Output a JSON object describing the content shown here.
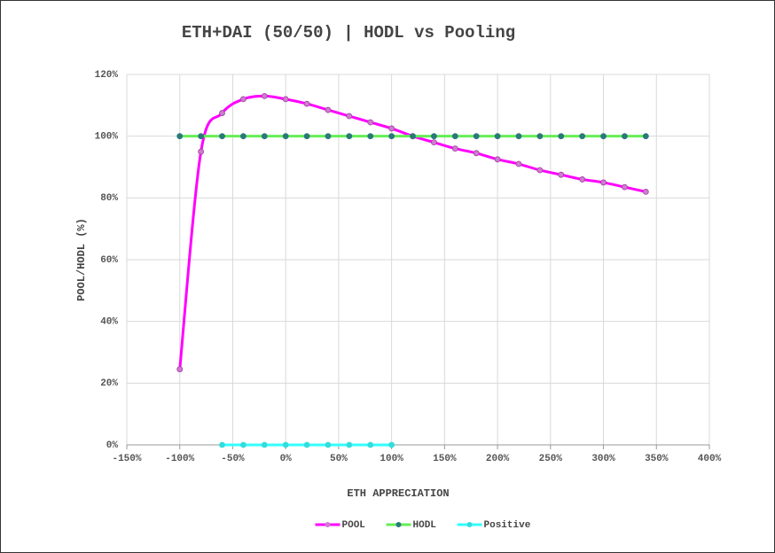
{
  "chart_data": {
    "type": "line",
    "title": "ETH+DAI (50/50) | HODL vs Pooling",
    "x_label": "ETH APPRECIATION",
    "y_label": "POOL/HODL (%)",
    "xlim": [
      -150,
      400
    ],
    "ylim": [
      0,
      120
    ],
    "xticks": [
      {
        "value": -150,
        "label": "-150%"
      },
      {
        "value": -100,
        "label": "-100%"
      },
      {
        "value": -50,
        "label": "-50%"
      },
      {
        "value": 0,
        "label": "0%"
      },
      {
        "value": 50,
        "label": "50%"
      },
      {
        "value": 100,
        "label": "100%"
      },
      {
        "value": 150,
        "label": "150%"
      },
      {
        "value": 200,
        "label": "200%"
      },
      {
        "value": 250,
        "label": "250%"
      },
      {
        "value": 300,
        "label": "300%"
      },
      {
        "value": 350,
        "label": "350%"
      },
      {
        "value": 400,
        "label": "400%"
      }
    ],
    "yticks": [
      {
        "value": 0,
        "label": "0%"
      },
      {
        "value": 20,
        "label": "20%"
      },
      {
        "value": 40,
        "label": "40%"
      },
      {
        "value": 60,
        "label": "60%"
      },
      {
        "value": 80,
        "label": "80%"
      },
      {
        "value": 100,
        "label": "100%"
      },
      {
        "value": 120,
        "label": "120%"
      }
    ],
    "grid": true,
    "legend": "bottom",
    "series": [
      {
        "name": "POOL",
        "color": "#ff00ff",
        "marker_color": "#d07ad0",
        "smooth": true,
        "x": [
          -100,
          -80,
          -60,
          -40,
          -20,
          0,
          20,
          40,
          60,
          80,
          100,
          120,
          140,
          160,
          180,
          200,
          220,
          240,
          260,
          280,
          300,
          320,
          340
        ],
        "values": [
          24.5,
          95,
          107.5,
          112,
          113,
          112,
          110.5,
          108.5,
          106.5,
          104.5,
          102.5,
          100,
          98,
          96,
          94.5,
          92.5,
          91,
          89,
          87.5,
          86,
          85,
          83.5,
          82
        ]
      },
      {
        "name": "HODL",
        "color": "#66ee55",
        "marker_color": "#2a7a7a",
        "smooth": false,
        "x": [
          -100,
          -80,
          -60,
          -40,
          -20,
          0,
          20,
          40,
          60,
          80,
          100,
          120,
          140,
          160,
          180,
          200,
          220,
          240,
          260,
          280,
          300,
          320,
          340
        ],
        "values": [
          100,
          100,
          100,
          100,
          100,
          100,
          100,
          100,
          100,
          100,
          100,
          100,
          100,
          100,
          100,
          100,
          100,
          100,
          100,
          100,
          100,
          100,
          100
        ]
      },
      {
        "name": "Positive",
        "color": "#33ffff",
        "marker_color": "#33dddd",
        "smooth": false,
        "x": [
          -60,
          -40,
          -20,
          0,
          20,
          40,
          60,
          80,
          100
        ],
        "values": [
          0,
          0,
          0,
          0,
          0,
          0,
          0,
          0,
          0
        ]
      }
    ]
  }
}
